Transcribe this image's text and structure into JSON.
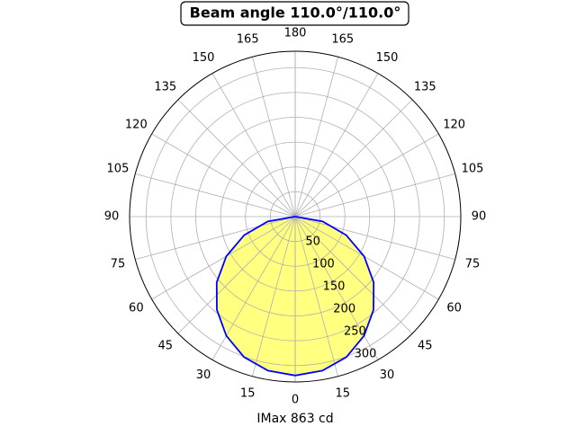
{
  "chart_data": {
    "type": "polar",
    "title": "Beam angle 110.0°/110.0°",
    "xlabel": "IMax 863 cd",
    "theta": [
      -90,
      -80,
      -70,
      -60,
      -50,
      -40,
      -30,
      -20,
      -10,
      0,
      10,
      20,
      30,
      40,
      50,
      60,
      70,
      80,
      90
    ],
    "values": [
      0,
      56,
      109,
      160,
      206,
      245,
      277,
      301,
      315,
      320,
      315,
      301,
      277,
      245,
      206,
      160,
      109,
      56,
      0
    ],
    "color": "#0000ff",
    "fill": "#ffff80",
    "ylim": [
      0,
      333
    ],
    "yticks": [
      50,
      100,
      150,
      200,
      250,
      300
    ],
    "thetaticks": [
      0,
      15,
      30,
      45,
      60,
      75,
      90,
      105,
      120,
      135,
      150,
      165,
      180
    ],
    "grid": true
  }
}
